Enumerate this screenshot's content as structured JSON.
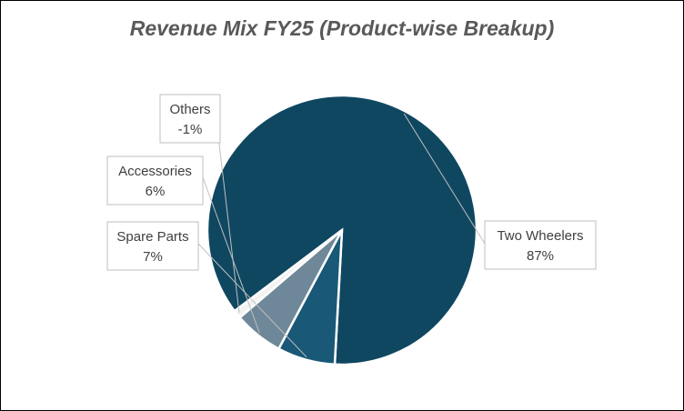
{
  "chart_data": {
    "type": "pie",
    "title": "Revenue Mix FY25 (Product-wise Breakup)",
    "slices": [
      {
        "label": "Two Wheelers",
        "value": 87,
        "value_label": "87%",
        "color": "#0f4761"
      },
      {
        "label": "Spare Parts",
        "value": 7,
        "value_label": "7%",
        "color": "#195877"
      },
      {
        "label": "Accessories",
        "value": 6,
        "value_label": "6%",
        "color": "#6f8899"
      },
      {
        "label": "Others",
        "value": -1,
        "value_label": "-1%",
        "color": "#f2f2f2"
      }
    ],
    "legend": "none"
  }
}
